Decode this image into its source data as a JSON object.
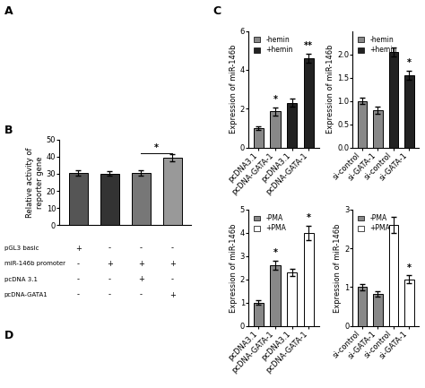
{
  "chart_data": [
    {
      "type": "bar",
      "ylabel": "Expression of miR-146b",
      "categories": [
        "pcDNA3.1",
        "pcDNA-GATA-1",
        "pcDNA3.1",
        "pcDNA-GATA-1"
      ],
      "series": [
        {
          "name": "-hemin",
          "color": "#888888",
          "values": [
            1.0,
            1.85,
            null,
            null
          ],
          "errors": [
            0.1,
            0.2,
            null,
            null
          ]
        },
        {
          "name": "+hemin",
          "color": "#222222",
          "values": [
            null,
            null,
            2.3,
            4.6
          ],
          "errors": [
            null,
            null,
            0.2,
            0.25
          ]
        }
      ],
      "ylim": [
        0,
        6
      ],
      "yticks": [
        0,
        2,
        4,
        6
      ],
      "legend": "upper left",
      "annotations": [
        {
          "text": "*",
          "index": 1
        },
        {
          "text": "**",
          "index": 3
        }
      ]
    },
    {
      "type": "bar",
      "ylabel": "Expression of miR-146b",
      "categories": [
        "si-control",
        "si-GATA-1",
        "si-control",
        "si-GATA-1"
      ],
      "series": [
        {
          "name": "-hemin",
          "color": "#888888",
          "values": [
            1.0,
            0.8,
            null,
            null
          ],
          "errors": [
            0.07,
            0.08,
            null,
            null
          ]
        },
        {
          "name": "+hemin",
          "color": "#222222",
          "values": [
            null,
            null,
            2.05,
            1.55
          ],
          "errors": [
            null,
            null,
            0.1,
            0.1
          ]
        }
      ],
      "ylim": [
        0,
        2.5
      ],
      "yticks": [
        0.0,
        0.5,
        1.0,
        1.5,
        2.0
      ],
      "legend": "upper left",
      "annotations": [
        {
          "text": "*",
          "index": 3
        }
      ]
    },
    {
      "type": "bar",
      "ylabel": "Expression of miR-146b",
      "categories": [
        "pcDNA3.1",
        "pcDNA-GATA-1",
        "pcDNA3.1",
        "pcDNA-GATA-1"
      ],
      "series": [
        {
          "name": "-PMA",
          "color": "#888888",
          "values": [
            1.0,
            2.6,
            null,
            null
          ],
          "errors": [
            0.1,
            0.2,
            null,
            null
          ]
        },
        {
          "name": "+PMA",
          "color": "#ffffff",
          "values": [
            null,
            null,
            2.3,
            4.0
          ],
          "errors": [
            null,
            null,
            0.15,
            0.3
          ]
        }
      ],
      "ylim": [
        0,
        5
      ],
      "yticks": [
        0,
        1,
        2,
        3,
        4,
        5
      ],
      "legend": "upper left",
      "annotations": [
        {
          "text": "*",
          "index": 1
        },
        {
          "text": "*",
          "index": 3
        }
      ]
    },
    {
      "type": "bar",
      "ylabel": "Expression of miR-146b",
      "categories": [
        "si-control",
        "si-GATA-1",
        "si-control",
        "si-GATA-1"
      ],
      "series": [
        {
          "name": "-PMA",
          "color": "#888888",
          "values": [
            1.0,
            0.82,
            null,
            null
          ],
          "errors": [
            0.08,
            0.07,
            null,
            null
          ]
        },
        {
          "name": "+PMA",
          "color": "#ffffff",
          "values": [
            null,
            null,
            2.6,
            1.2
          ],
          "errors": [
            null,
            null,
            0.2,
            0.1
          ]
        }
      ],
      "ylim": [
        0,
        3
      ],
      "yticks": [
        0,
        1,
        2,
        3
      ],
      "legend": "upper left",
      "annotations": [
        {
          "text": "*",
          "index": 3
        }
      ]
    },
    {
      "type": "bar",
      "ylabel": "Relative activity of\nreporter gene",
      "categories": [
        null,
        null,
        null,
        null
      ],
      "values": [
        30.5,
        30.2,
        30.5,
        39.5
      ],
      "errors": [
        1.5,
        1.2,
        1.5,
        2.0
      ],
      "colors": [
        "#555555",
        "#333333",
        "#777777",
        "#999999"
      ],
      "ylim": [
        0,
        50
      ],
      "yticks": [
        0,
        10,
        20,
        30,
        40,
        50
      ],
      "bracket": {
        "from": 2,
        "to": 3,
        "y": 42,
        "text": "*"
      },
      "table": [
        {
          "label": "pGL3 basic",
          "cells": [
            "+",
            "-",
            "-",
            "-"
          ]
        },
        {
          "label": "miR-146b promoter",
          "cells": [
            "-",
            "+",
            "+",
            "+"
          ]
        },
        {
          "label": "pcDNA 3.1",
          "cells": [
            "-",
            "-",
            "+",
            "-"
          ]
        },
        {
          "label": "pcDNA-GATA1",
          "cells": [
            "-",
            "-",
            "-",
            "+"
          ]
        }
      ]
    }
  ],
  "panel_labels": [
    "A",
    "B",
    "C",
    "D"
  ]
}
